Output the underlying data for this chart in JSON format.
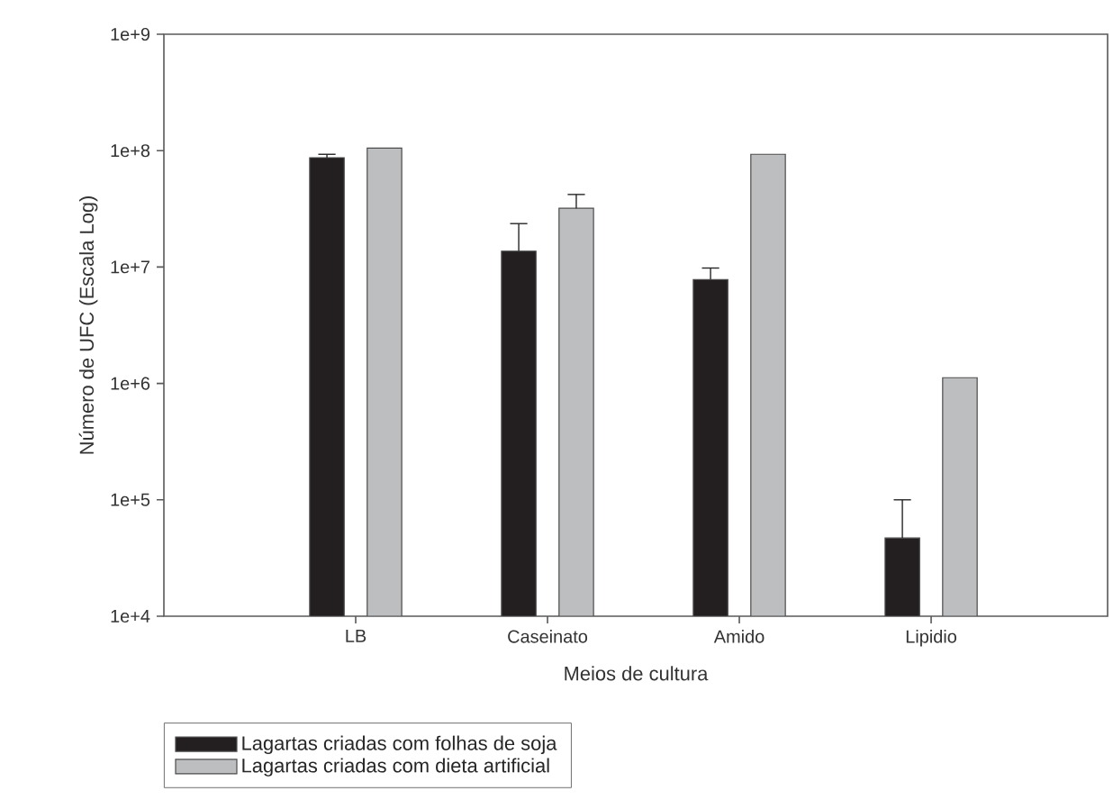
{
  "chart_data": {
    "type": "bar",
    "xlabel": "Meios de cultura",
    "ylabel": "Número de UFC (Escala Log)",
    "categories": [
      "LB",
      "Caseinato",
      "Amido",
      "Lipidio"
    ],
    "series": [
      {
        "name": "Lagartas criadas com folhas de soja",
        "color": "#231f20",
        "values": [
          87000000,
          13700000,
          7800000,
          47000
        ],
        "errors": [
          [
            87000000,
            93000000
          ],
          [
            13700000,
            23600000
          ],
          [
            7800000,
            9800000
          ],
          [
            47000,
            100000
          ]
        ]
      },
      {
        "name": "Lagartas criadas com dieta artificial",
        "color": "#bcbec0",
        "values": [
          105000000,
          32000000,
          93000000,
          1120000
        ],
        "errors": [
          null,
          [
            32000000,
            42000000
          ],
          null,
          null
        ]
      }
    ],
    "log": "y",
    "ylim": [
      10000,
      1000000000
    ],
    "yticks": [
      {
        "value": 10000,
        "label": "1e+4"
      },
      {
        "value": 100000,
        "label": "1e+5"
      },
      {
        "value": 1000000,
        "label": "1e+6"
      },
      {
        "value": 10000000,
        "label": "1e+7"
      },
      {
        "value": 100000000,
        "label": "1e+8"
      },
      {
        "value": 1000000000,
        "label": "1e+9"
      }
    ],
    "legend": "bottom"
  }
}
